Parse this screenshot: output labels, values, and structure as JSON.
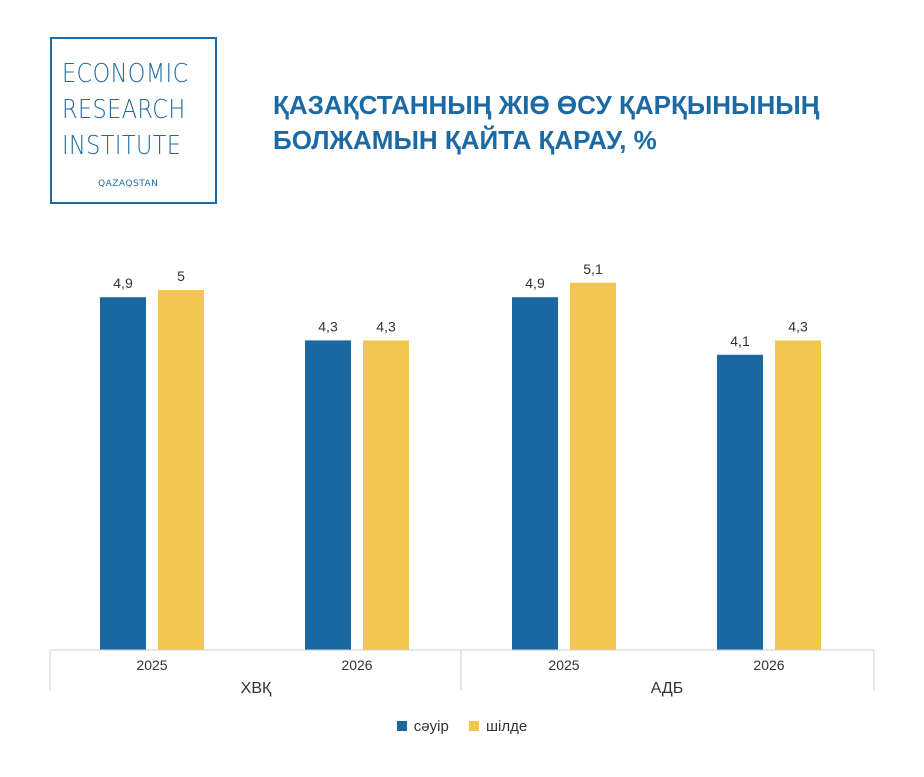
{
  "logo": {
    "lines": [
      "ECONOMIC",
      "RESEARCH",
      "INSTITUTE"
    ],
    "sub": "QAZAQSTAN"
  },
  "title": {
    "line1": "ҚАЗАҚСТАННЫҢ ЖІӨ ӨСУ ҚАРҚЫНЫНЫҢ",
    "line2": "БОЛЖАМЫН ҚАЙТА ҚАРАУ, %"
  },
  "colors": {
    "series1": "#1a67a1",
    "series2": "#f3c74f",
    "accent": "#1c6aa3"
  },
  "chart_data": {
    "type": "bar",
    "groups": [
      {
        "label": "ХВҚ",
        "categories": [
          "2025",
          "2026"
        ]
      },
      {
        "label": "АДБ",
        "categories": [
          "2025",
          "2026"
        ]
      }
    ],
    "series": [
      {
        "name": "сәуір",
        "labels": [
          "4,9",
          "4,3",
          "4,9",
          "4,1"
        ],
        "values": [
          4.9,
          4.3,
          4.9,
          4.1
        ]
      },
      {
        "name": "шілде",
        "labels": [
          "5",
          "4,3",
          "5,1",
          "4,3"
        ],
        "values": [
          5.0,
          4.3,
          5.1,
          4.3
        ]
      }
    ],
    "ylim": [
      0,
      5.1
    ],
    "grid": false,
    "legend_position": "bottom"
  }
}
